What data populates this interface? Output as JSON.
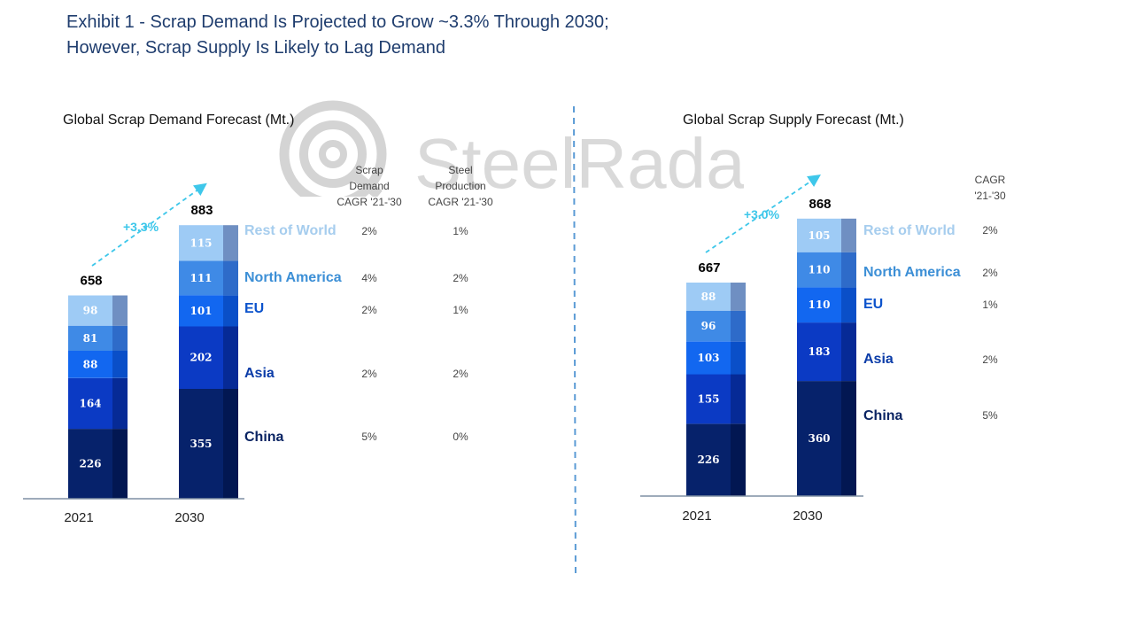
{
  "title": {
    "line1": "Exhibit 1 - Scrap Demand Is Projected to Grow ~3.3% Through 2030;",
    "line2": "However, Scrap Supply Is Likely to Lag Demand"
  },
  "watermark": {
    "text": "SteelRadar"
  },
  "colors": {
    "title": "#1f3d6e",
    "segments": [
      "#06226b",
      "#0b3ac4",
      "#1267f0",
      "#3f8ae6",
      "#9ecbf5"
    ],
    "side_strips": [
      "#021752",
      "#062a96",
      "#0a4fc8",
      "#2e6bc9",
      "#6f8fc2"
    ],
    "region_labels": [
      "#0a2463",
      "#0b3ca8",
      "#0c53cc",
      "#3c8fd6",
      "#a6cdee"
    ],
    "growth": "#3ec7ea",
    "divider": "#5b9bd5"
  },
  "chart_data": [
    {
      "type": "bar",
      "stacked": true,
      "title": "Global Scrap Demand Forecast (Mt.)",
      "categories": [
        "2021",
        "2030"
      ],
      "series": [
        {
          "name": "China",
          "values": [
            226,
            355
          ]
        },
        {
          "name": "Asia",
          "values": [
            164,
            202
          ]
        },
        {
          "name": "EU",
          "values": [
            88,
            101
          ]
        },
        {
          "name": "North America",
          "values": [
            81,
            111
          ]
        },
        {
          "name": "Rest of World",
          "values": [
            98,
            115
          ]
        }
      ],
      "totals": [
        "658",
        "883"
      ],
      "growth_label": "+3.3%",
      "table": {
        "columns": [
          {
            "header": [
              "Scrap",
              "Demand",
              "CAGR '21-'30"
            ],
            "values": [
              "5%",
              "2%",
              "2%",
              "4%",
              "2%"
            ]
          },
          {
            "header": [
              "Steel",
              "Production",
              "CAGR '21-'30"
            ],
            "values": [
              "0%",
              "2%",
              "1%",
              "2%",
              "1%"
            ]
          }
        ]
      }
    },
    {
      "type": "bar",
      "stacked": true,
      "title": "Global Scrap Supply Forecast (Mt.)",
      "categories": [
        "2021",
        "2030"
      ],
      "series": [
        {
          "name": "China",
          "values": [
            226,
            360
          ]
        },
        {
          "name": "Asia",
          "values": [
            155,
            183
          ]
        },
        {
          "name": "EU",
          "values": [
            103,
            110
          ]
        },
        {
          "name": "North America",
          "values": [
            96,
            110
          ]
        },
        {
          "name": "Rest of World",
          "values": [
            88,
            105
          ]
        }
      ],
      "totals": [
        "667",
        "868"
      ],
      "growth_label": "+3.0%",
      "table": {
        "columns": [
          {
            "header": [
              "CAGR",
              "'21-'30"
            ],
            "values": [
              "5%",
              "2%",
              "1%",
              "2%",
              "2%"
            ]
          }
        ]
      }
    }
  ]
}
